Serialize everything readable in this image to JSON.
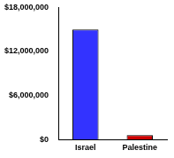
{
  "chart_data": {
    "type": "bar",
    "categories": [
      "Israel",
      "Palestine"
    ],
    "values": [
      15000000,
      600000
    ],
    "colors": [
      "#3333ff",
      "#cc0000"
    ],
    "ylim": [
      0,
      18000000
    ],
    "yticks": [
      {
        "value": 0,
        "label": "$0"
      },
      {
        "value": 6000000,
        "label": "$6,000,000"
      },
      {
        "value": 12000000,
        "label": "$12,000,000"
      },
      {
        "value": 18000000,
        "label": "$18,000,000"
      }
    ],
    "grid": false
  }
}
